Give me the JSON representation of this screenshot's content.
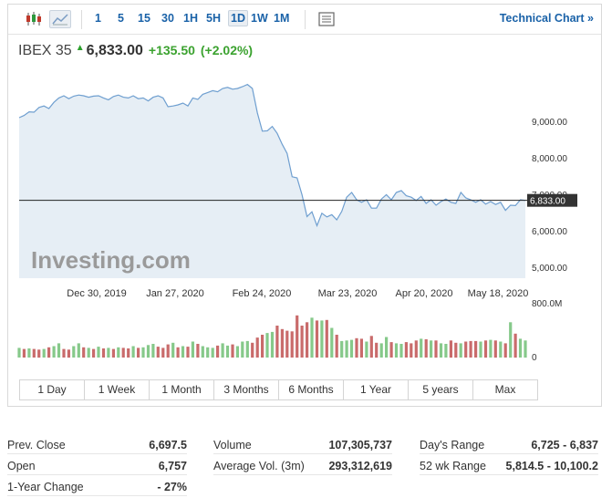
{
  "toolbar": {
    "timeframes": [
      "1",
      "5",
      "15",
      "30",
      "1H",
      "5H",
      "1D",
      "1W",
      "1M"
    ],
    "active_timeframe": "1D",
    "technical_link": "Technical Chart »"
  },
  "quote": {
    "name": "IBEX 35",
    "last": "6,833.00",
    "change": "+135.50",
    "change_pct": "(+2.02%)",
    "colors": {
      "up": "#3ba22f"
    }
  },
  "chart_data": {
    "type": "area",
    "x_tick_labels": [
      "Dec 30, 2019",
      "Jan 27, 2020",
      "Feb 24, 2020",
      "Mar 23, 2020",
      "Apr 20, 2020",
      "May 18, 2020"
    ],
    "y_tick_labels": [
      "9,000.00",
      "8,000.00",
      "7,000.00",
      "6,000.00",
      "5,000.00"
    ],
    "ylim": [
      4700,
      10400
    ],
    "last_price_label": "6,833.00",
    "last_price": 6833,
    "volume_axis_labels": [
      "800.0M",
      "0"
    ],
    "volume_max": 800,
    "watermark": "Investing.com",
    "colors": {
      "line": "#6f9fd0",
      "fill": "#e6eef5",
      "vol_up": "#86c98a",
      "vol_down": "#c96b6b"
    },
    "prices": [
      9100,
      9160,
      9260,
      9250,
      9380,
      9420,
      9350,
      9520,
      9640,
      9700,
      9620,
      9690,
      9720,
      9700,
      9660,
      9690,
      9700,
      9640,
      9590,
      9680,
      9720,
      9660,
      9640,
      9700,
      9620,
      9640,
      9560,
      9660,
      9700,
      9640,
      9400,
      9420,
      9450,
      9500,
      9420,
      9640,
      9600,
      9740,
      9790,
      9840,
      9810,
      9900,
      9930,
      9880,
      9900,
      9950,
      10010,
      9900,
      9230,
      8730,
      8740,
      8860,
      8670,
      8370,
      8120,
      7480,
      7450,
      6990,
      6390,
      6520,
      6140,
      6480,
      6380,
      6440,
      6300,
      6530,
      6920,
      7050,
      6850,
      6780,
      6850,
      6620,
      6620,
      6870,
      6990,
      6850,
      7050,
      7100,
      6960,
      6920,
      6830,
      6940,
      6750,
      6850,
      6700,
      6800,
      6870,
      6780,
      6750,
      7050,
      6900,
      6850,
      6780,
      6850,
      6730,
      6800,
      6720,
      6780,
      6560,
      6700,
      6690,
      6850,
      6833
    ],
    "volumes": [
      170,
      150,
      160,
      150,
      140,
      150,
      180,
      200,
      250,
      150,
      140,
      200,
      250,
      180,
      170,
      150,
      190,
      160,
      170,
      150,
      180,
      170,
      160,
      200,
      170,
      180,
      220,
      240,
      190,
      170,
      230,
      260,
      180,
      200,
      190,
      280,
      240,
      200,
      180,
      170,
      210,
      250,
      210,
      230,
      200,
      280,
      290,
      260,
      350,
      400,
      430,
      450,
      560,
      500,
      470,
      460,
      740,
      560,
      620,
      700,
      650,
      650,
      660,
      520,
      400,
      290,
      300,
      310,
      340,
      330,
      280,
      380,
      260,
      250,
      360,
      270,
      250,
      240,
      270,
      250,
      300,
      330,
      320,
      300,
      300,
      250,
      240,
      300,
      260,
      250,
      280,
      290,
      290,
      280,
      300,
      310,
      300,
      280,
      250,
      620,
      420,
      330,
      300
    ],
    "volume_up": [
      true,
      false,
      true,
      false,
      false,
      true,
      false,
      true,
      true,
      false,
      false,
      true,
      true,
      false,
      true,
      false,
      true,
      false,
      true,
      false,
      true,
      false,
      false,
      true,
      false,
      true,
      true,
      true,
      false,
      false,
      false,
      true,
      false,
      true,
      false,
      true,
      false,
      true,
      true,
      true,
      false,
      true,
      true,
      false,
      true,
      true,
      true,
      false,
      false,
      false,
      true,
      true,
      false,
      false,
      false,
      false,
      false,
      false,
      false,
      true,
      false,
      true,
      false,
      true,
      false,
      true,
      true,
      true,
      false,
      false,
      true,
      false,
      false,
      true,
      true,
      false,
      true,
      true,
      false,
      false,
      false,
      true,
      false,
      true,
      false,
      true,
      true,
      false,
      false,
      true,
      false,
      false,
      false,
      true,
      false,
      true,
      false,
      true,
      false,
      true,
      false,
      true,
      true
    ]
  },
  "ranges": [
    "1 Day",
    "1 Week",
    "1 Month",
    "3 Months",
    "6 Months",
    "1 Year",
    "5 years",
    "Max"
  ],
  "stats": {
    "col1": [
      {
        "label": "Prev. Close",
        "value": "6,697.5"
      },
      {
        "label": "Open",
        "value": "6,757"
      },
      {
        "label": "1-Year Change",
        "value": "- 27%"
      }
    ],
    "col2": [
      {
        "label": "Volume",
        "value": "107,305,737"
      },
      {
        "label": "Average Vol. (3m)",
        "value": "293,312,619"
      }
    ],
    "col3": [
      {
        "label": "Day's Range",
        "value": "6,725 - 6,837"
      },
      {
        "label": "52 wk Range",
        "value": "5,814.5 - 10,100.2"
      }
    ]
  }
}
